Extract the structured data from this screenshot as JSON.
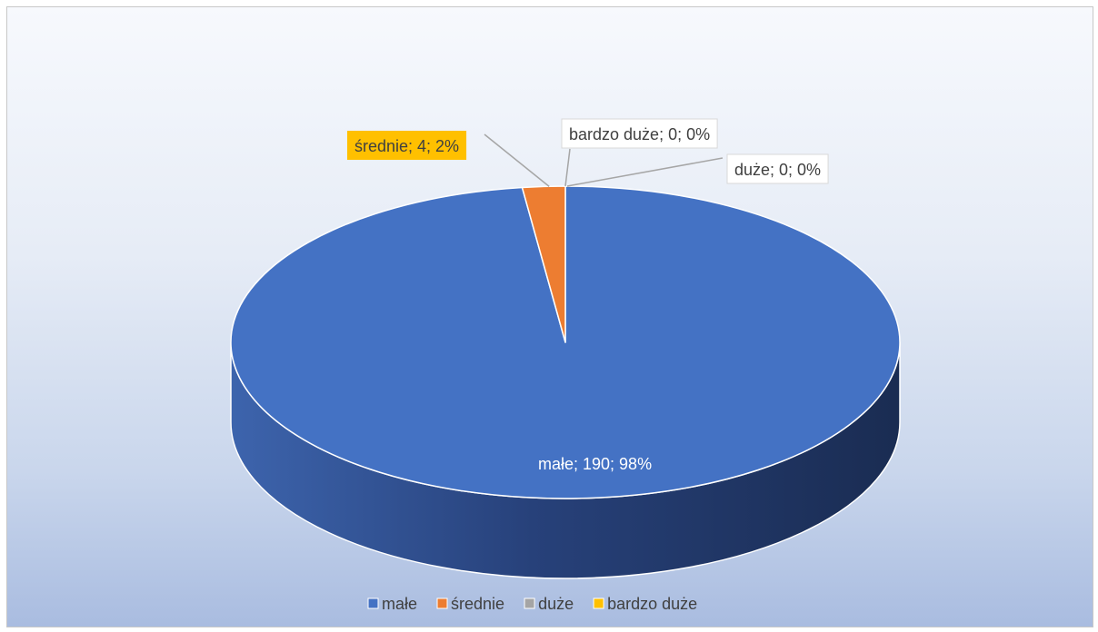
{
  "chart_data": {
    "type": "pie",
    "title": "",
    "style": "3d",
    "slices": [
      {
        "name": "małe",
        "value": 190,
        "percent": 98,
        "label": "małe; 190; 98%",
        "color": "#4472C4"
      },
      {
        "name": "średnie",
        "value": 4,
        "percent": 2,
        "label": "średnie; 4; 2%",
        "color": "#ED7D31"
      },
      {
        "name": "duże",
        "value": 0,
        "percent": 0,
        "label": "duże; 0; 0%",
        "color": "#A5A5A5"
      },
      {
        "name": "bardzo duże",
        "value": 0,
        "percent": 0,
        "label": "bardzo duże; 0; 0%",
        "color": "#FFC000"
      }
    ],
    "legend": {
      "position": "bottom",
      "entries": [
        "małe",
        "średnie",
        "duże",
        "bardzo duże"
      ]
    }
  }
}
